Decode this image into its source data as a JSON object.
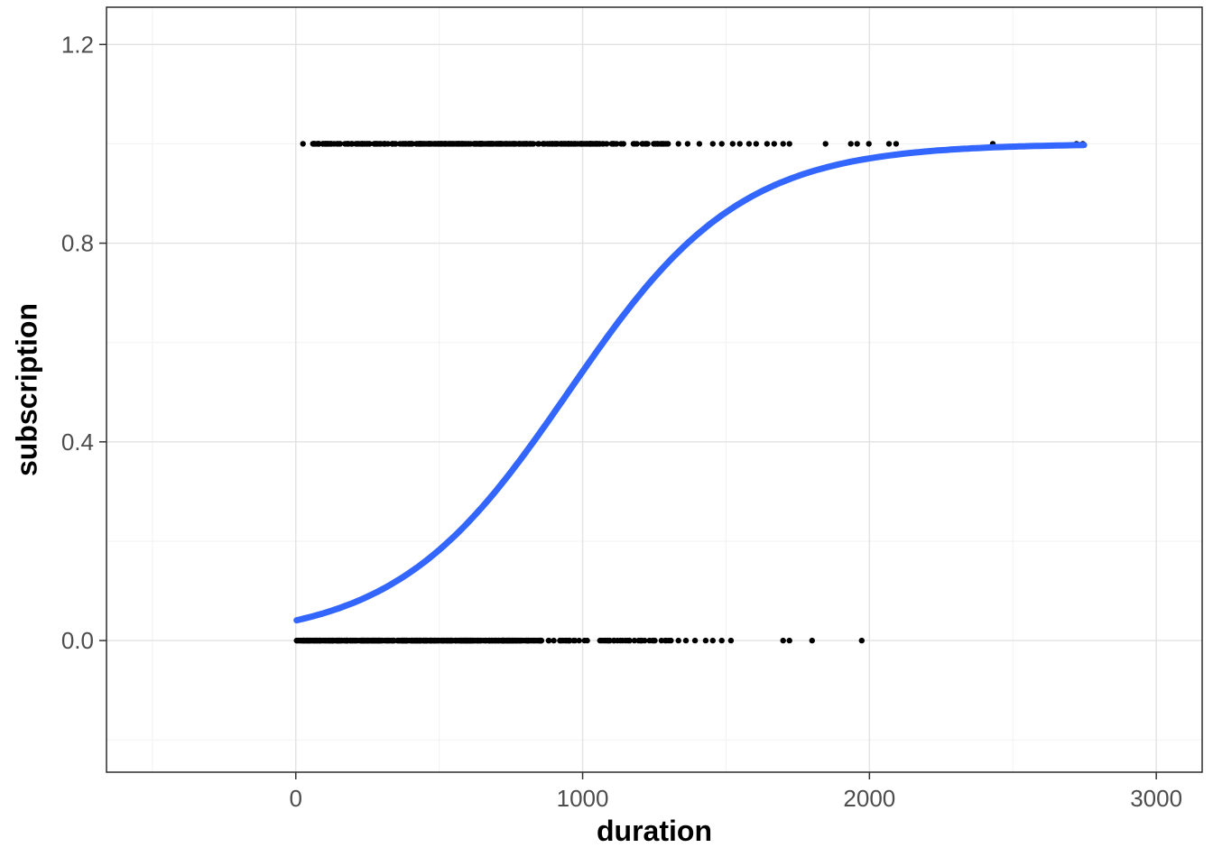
{
  "figure": {
    "background": "#FFFFFF",
    "panel_background": "#FFFFFF",
    "panel_border_color": "#2B2B2B",
    "grid_major_color": "#E2E2E2",
    "grid_minor_color": "#F2F2F2",
    "tick_mark_color": "#333333",
    "tick_label_color": "#4D4D4D",
    "axis_title_color": "#000000"
  },
  "chart_data": {
    "type": "scatter",
    "title": "",
    "xlabel": "duration",
    "ylabel": "subscription",
    "xlim": [
      -660,
      3160
    ],
    "ylim": [
      -0.265,
      1.275
    ],
    "x_ticks": [
      0,
      1000,
      2000,
      3000
    ],
    "x_tick_labels": [
      "0",
      "1000",
      "2000",
      "3000"
    ],
    "x_minor_ticks": [
      -500,
      500,
      1500,
      2500
    ],
    "y_ticks": [
      0,
      0.4,
      0.8,
      1.2
    ],
    "y_tick_labels": [
      "0.0",
      "0.4",
      "0.8",
      "1.2"
    ],
    "y_minor_ticks": [
      -0.2,
      0.2,
      0.6,
      1.0
    ],
    "grid": "on",
    "legend": "none",
    "point": {
      "color": "#000000",
      "radius": 3.2
    },
    "series": [
      {
        "name": "subscription = 0",
        "y": 0,
        "dense_x_ranges": [
          [
            0,
            860,
            400
          ],
          [
            860,
            1310,
            52
          ]
        ],
        "outlier_x": [
          1334,
          1360,
          1392,
          1429,
          1454,
          1485,
          1517,
          1699,
          1721,
          1800,
          1973
        ]
      },
      {
        "name": "subscription = 1",
        "y": 1,
        "dense_x_ranges": [
          [
            60,
            1050,
            330
          ],
          [
            1050,
            1300,
            40
          ]
        ],
        "outlier_x": [
          25,
          1334,
          1366,
          1407,
          1454,
          1485,
          1523,
          1548,
          1580,
          1605,
          1643,
          1668,
          1699,
          1721,
          1847,
          1935,
          1957,
          1998,
          2068,
          2093,
          2430,
          2722,
          2744
        ]
      }
    ],
    "fit_curve": {
      "model": "logistic",
      "formula": "y = 1 / (1 + exp(-(x - 950) / 300))",
      "midpoint": 950,
      "scale": 300,
      "x_start": 3,
      "x_end": 2760,
      "color": "#3366FF",
      "stroke_width": 7
    }
  }
}
